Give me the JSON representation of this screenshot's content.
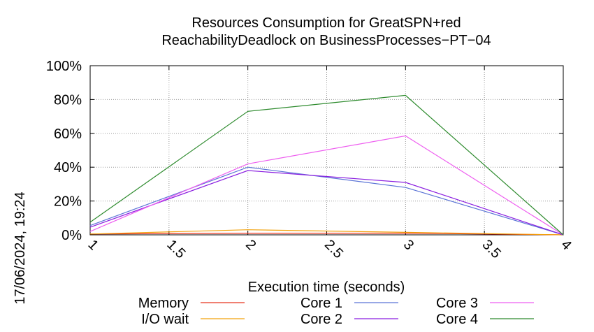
{
  "chart_data": {
    "type": "line",
    "title_line1": "Resources Consumption for GreatSPN+red",
    "title_line2": "ReachabilityDeadlock on BusinessProcesses−PT−04",
    "xlabel": "Execution time (seconds)",
    "ylabel": "",
    "timestamp": "17/06/2024, 19:24",
    "xlim": [
      1,
      4
    ],
    "ylim": [
      0,
      100
    ],
    "x_ticks": [
      1,
      1.5,
      2,
      2.5,
      3,
      3.5,
      4
    ],
    "x_tick_labels": [
      "1",
      "1.5",
      "2",
      "2.5",
      "3",
      "3.5",
      "4"
    ],
    "y_ticks": [
      0,
      20,
      40,
      60,
      80,
      100
    ],
    "y_tick_labels": [
      "0%",
      "20%",
      "40%",
      "60%",
      "80%",
      "100%"
    ],
    "grid": true,
    "legend_position": "bottom",
    "x": [
      1,
      2,
      3,
      4
    ],
    "series": [
      {
        "name": "Memory",
        "color": "#e8351d",
        "values": [
          0.5,
          1.0,
          1.0,
          0.0
        ]
      },
      {
        "name": "I/O wait",
        "color": "#f2a20c",
        "values": [
          0.5,
          3.0,
          1.5,
          0.0
        ]
      },
      {
        "name": "Core 1",
        "color": "#5b74d6",
        "values": [
          5.5,
          40.0,
          28.0,
          0.0
        ]
      },
      {
        "name": "Core 2",
        "color": "#8a1ee0",
        "values": [
          4.5,
          38.0,
          31.0,
          0.0
        ]
      },
      {
        "name": "Core 3",
        "color": "#ee5ff0",
        "values": [
          2.0,
          42.0,
          58.5,
          0.0
        ]
      },
      {
        "name": "Core 4",
        "color": "#2e8b2e",
        "values": [
          7.5,
          73.0,
          82.5,
          0.0
        ]
      }
    ]
  }
}
